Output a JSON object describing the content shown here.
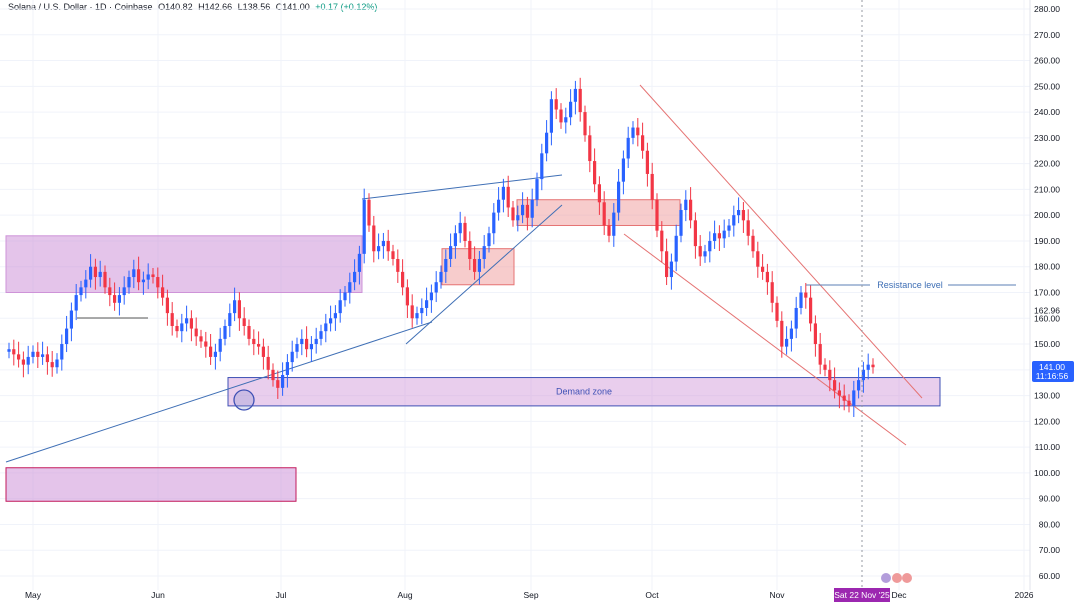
{
  "header": {
    "symbol": "Solana / U.S. Dollar · 1D · Coinbase",
    "open": "O140.82",
    "high": "H142.66",
    "low": "L138.56",
    "close": "C141.00",
    "change": "+0.17 (+0.12%)"
  },
  "price_tag": {
    "price": "141.00",
    "countdown": "11:16:56"
  },
  "crosshair_date": "Sat 22 Nov '25",
  "colors": {
    "up": "#2962ff",
    "down": "#f23645",
    "zone": "#ce93d8",
    "supply": "#ef9a9a",
    "trend": "#3f6fb5"
  },
  "chart_data": {
    "type": "candlestick",
    "y_axis": {
      "range": [
        56,
        283
      ],
      "ticks": [
        60,
        70,
        80,
        90,
        100,
        110,
        120,
        130,
        140,
        150,
        160,
        170,
        180,
        190,
        200,
        210,
        220,
        230,
        240,
        250,
        260,
        270,
        280
      ],
      "extra_label": "162.96"
    },
    "x_axis": {
      "labels": [
        "May",
        "Jun",
        "Jul",
        "Aug",
        "Sep",
        "Oct",
        "Nov",
        "Dec",
        "2026"
      ]
    },
    "closes": [
      148,
      146,
      144,
      142,
      145,
      147,
      145,
      146,
      143,
      141,
      144,
      150,
      156,
      163,
      169,
      172,
      175,
      180,
      176,
      178,
      172,
      169,
      166,
      169,
      172,
      176,
      179,
      174,
      175,
      177,
      176,
      172,
      168,
      162,
      157,
      155,
      158,
      160,
      156,
      153,
      151,
      149,
      145,
      147,
      152,
      157,
      162,
      167,
      160,
      157,
      152,
      150,
      149,
      145,
      140,
      136,
      133,
      138,
      143,
      147,
      150,
      152,
      148,
      150,
      152,
      155,
      158,
      160,
      162,
      167,
      170,
      174,
      178,
      185,
      206,
      196,
      186,
      188,
      190,
      186,
      183,
      178,
      172,
      165,
      160,
      162,
      164,
      167,
      170,
      174,
      178,
      183,
      188,
      193,
      197,
      190,
      183,
      178,
      183,
      188,
      193,
      201,
      206,
      211,
      203,
      198,
      200,
      204,
      199,
      206,
      214,
      224,
      232,
      245,
      241,
      236,
      238,
      244,
      249,
      240,
      231,
      221,
      212,
      205,
      196,
      192,
      201,
      213,
      222,
      230,
      234,
      231,
      225,
      216,
      206,
      194,
      186,
      176,
      182,
      192,
      202,
      206,
      198,
      188,
      184,
      186,
      190,
      193,
      191,
      194,
      196,
      200,
      202,
      198,
      192,
      186,
      180,
      178,
      174,
      166,
      159,
      149,
      152,
      156,
      164,
      170,
      168,
      158,
      150,
      142,
      140,
      136,
      132,
      130,
      128,
      126,
      132,
      136,
      140,
      142,
      141
    ],
    "zones": [
      {
        "label": "Demand zone",
        "low": 126,
        "high": 137
      },
      {
        "label": "",
        "low": 170,
        "high": 192
      },
      {
        "label": "",
        "low": 89,
        "high": 102
      }
    ],
    "supply_boxes": [
      {
        "low": 173,
        "high": 187
      },
      {
        "low": 196,
        "high": 206
      },
      {
        "low": 195,
        "high": 205
      }
    ],
    "annotations": [
      {
        "label": "Resistance level",
        "price": 173
      }
    ]
  }
}
